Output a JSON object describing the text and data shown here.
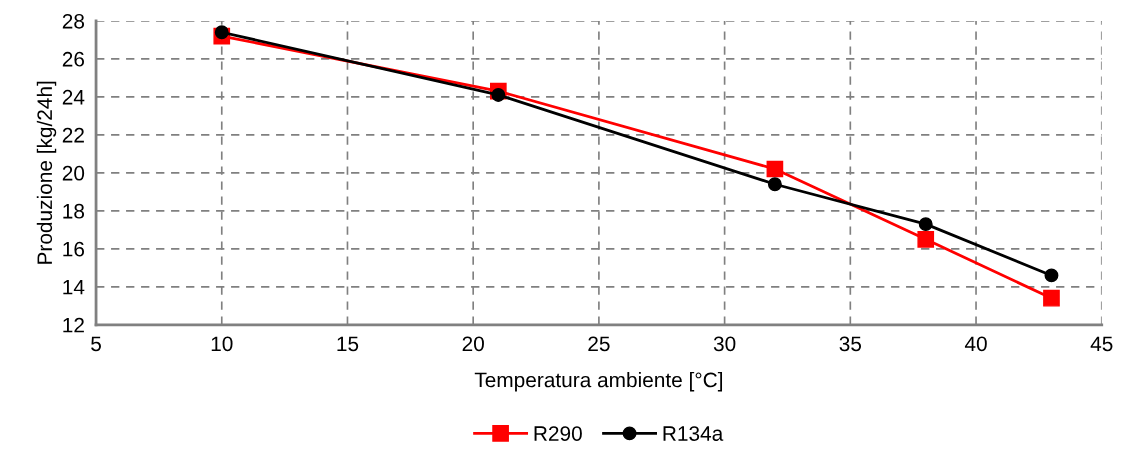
{
  "chart_data": {
    "type": "line",
    "xlabel": "Temperatura ambiente [°C]",
    "ylabel": "Produzione [kg/24h]",
    "x": [
      10,
      21,
      32,
      38,
      43
    ],
    "series": [
      {
        "name": "R290",
        "color": "#ff0000",
        "marker": "square",
        "values": [
          27.2,
          24.3,
          20.2,
          16.5,
          13.4
        ]
      },
      {
        "name": "R134a",
        "color": "#000000",
        "marker": "circle",
        "values": [
          27.4,
          24.1,
          19.4,
          17.3,
          14.6
        ]
      }
    ],
    "xlim": [
      5,
      45
    ],
    "xticks": [
      5,
      10,
      15,
      20,
      25,
      30,
      35,
      40,
      45
    ],
    "ylim": [
      12,
      28
    ],
    "yticks": [
      12,
      14,
      16,
      18,
      20,
      22,
      24,
      26,
      28
    ],
    "grid": true,
    "legend": "bottom",
    "line_style": "solid"
  }
}
